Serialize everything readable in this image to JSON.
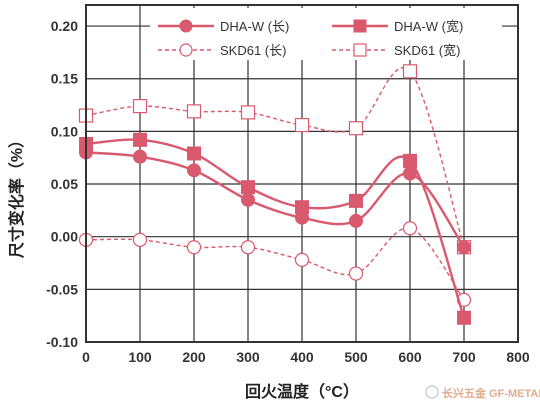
{
  "chart_data": {
    "type": "line",
    "xlabel": "回火温度（°C）",
    "ylabel": "尺寸变化率（%）",
    "xlim": [
      0,
      800
    ],
    "ylim": [
      -0.1,
      0.22
    ],
    "xticks": [
      "0",
      "100",
      "200",
      "300",
      "400",
      "500",
      "600",
      "700",
      "800"
    ],
    "yticks": [
      "0.20",
      "0.15",
      "0.10",
      "0.05",
      "0.00",
      "-0.05",
      "-0.10"
    ],
    "grid": true,
    "legend_position": "top",
    "series": [
      {
        "name": "DHA-W (长)",
        "line": "solid",
        "marker": "filled-circle",
        "color": "#d9596e",
        "x": [
          0,
          100,
          200,
          300,
          400,
          500,
          600,
          700
        ],
        "y": [
          0.08,
          0.076,
          0.063,
          0.035,
          0.018,
          0.015,
          0.06,
          -0.01
        ]
      },
      {
        "name": "DHA-W (宽)",
        "line": "solid",
        "marker": "filled-square",
        "color": "#d9596e",
        "x": [
          0,
          100,
          200,
          300,
          400,
          500,
          600,
          700
        ],
        "y": [
          0.088,
          0.092,
          0.079,
          0.047,
          0.028,
          0.034,
          0.072,
          -0.077
        ]
      },
      {
        "name": "SKD61 (长)",
        "line": "dashed",
        "marker": "open-circle",
        "color": "#d9596e",
        "x": [
          0,
          100,
          200,
          300,
          400,
          500,
          600,
          700
        ],
        "y": [
          -0.003,
          -0.003,
          -0.01,
          -0.01,
          -0.022,
          -0.035,
          0.008,
          -0.06
        ]
      },
      {
        "name": "SKD61 (宽)",
        "line": "dashed",
        "marker": "open-square",
        "color": "#d9596e",
        "x": [
          0,
          100,
          200,
          300,
          400,
          500,
          600,
          700
        ],
        "y": [
          0.115,
          0.124,
          0.119,
          0.118,
          0.106,
          0.103,
          0.157,
          -0.01
        ]
      }
    ]
  },
  "watermark": "长兴五金 GF-METALS.COM"
}
